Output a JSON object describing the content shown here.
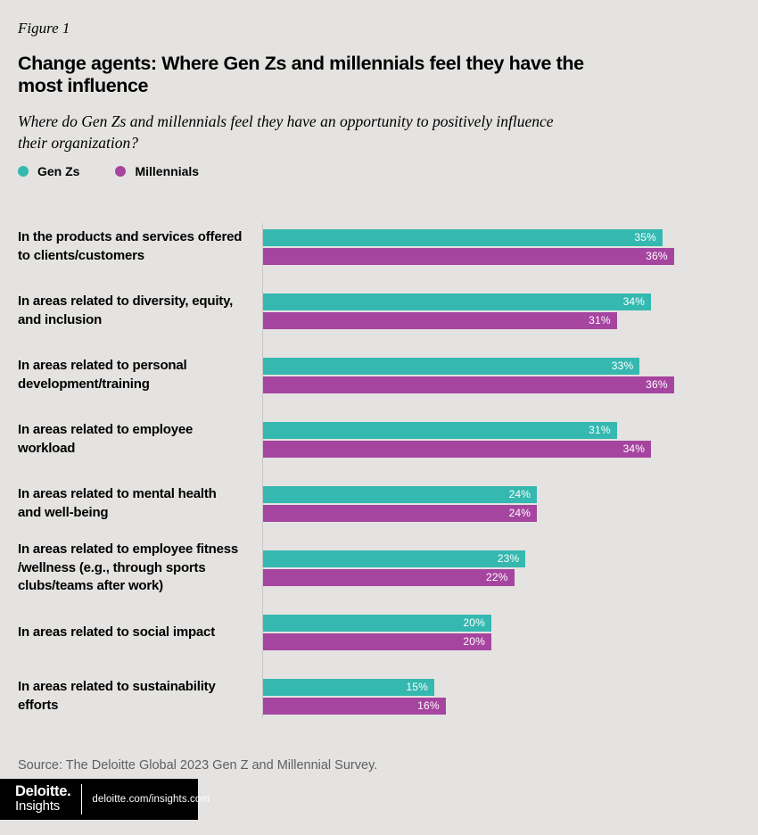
{
  "figure_label": "Figure 1",
  "title": "Change agents: Where Gen Zs and millennials feel they have the\nmost influence",
  "subtitle": "Where do Gen Zs and millennials feel they have an opportunity to positively influence\ntheir organization?",
  "legend": [
    {
      "label": "Gen Zs",
      "color": "#35b8b0"
    },
    {
      "label": "Millennials",
      "color": "#a6459f"
    }
  ],
  "colors": {
    "background": "#e4e3e1",
    "genz_teal": "#35b8b0",
    "millennial_magenta": "#a6459f",
    "axis_line": "#c7c7c5",
    "source_text": "#5f6062",
    "footer_bg": "#000000",
    "deloitte_green": "#86bc25",
    "bar_value_text": "#ffffff"
  },
  "chart_data": {
    "type": "bar",
    "orientation": "horizontal",
    "unit": "%",
    "xlim": [
      0,
      40
    ],
    "grid": false,
    "legend_position": "top-left",
    "categories": [
      "In the products and services offered\nto clients/customers",
      "In areas related to diversity, equity,\nand inclusion",
      "In areas related to personal\ndevelopment/training",
      "In areas related to employee\n workload",
      "In areas related to mental health\nand well-being",
      "In areas related to employee fitness\n/wellness (e.g., through sports\nclubs/teams after work)",
      "In areas related to social impact",
      "In areas related to sustainability\nefforts"
    ],
    "series": [
      {
        "name": "Gen Zs",
        "color": "#35b8b0",
        "values": [
          35,
          34,
          33,
          31,
          24,
          23,
          20,
          15
        ]
      },
      {
        "name": "Millennials",
        "color": "#a6459f",
        "values": [
          36,
          31,
          36,
          34,
          24,
          22,
          20,
          16
        ]
      }
    ]
  },
  "source": "Source: The Deloitte Global 2023 Gen Z and Millennial Survey.",
  "footer": {
    "brand": "Deloitte",
    "brand_dot": ".",
    "brand_sub": "Insights",
    "url": "deloitte.com/insights.com"
  }
}
